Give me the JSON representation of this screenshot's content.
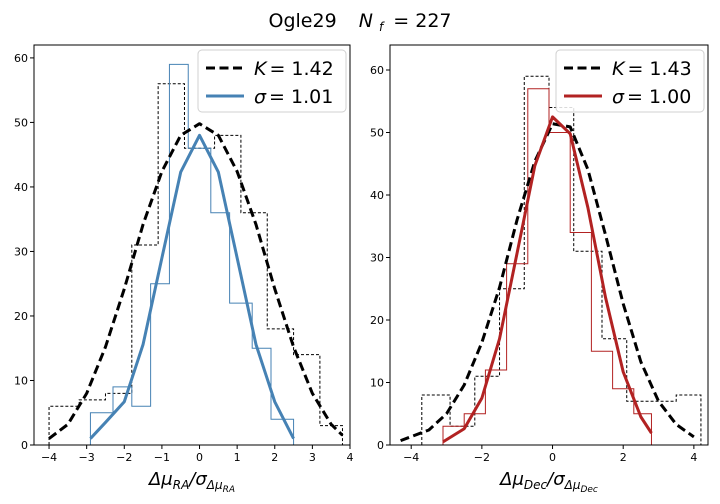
{
  "figure": {
    "title": "Ogle29",
    "title_nf": "N",
    "title_nf_sub": "f",
    "title_nf_value": "= 227"
  },
  "chart_data": [
    {
      "type": "histogram",
      "xlabel": "Δμ_RA/σ_Δμ_RA",
      "xlabel_parts": {
        "main": "Δμ",
        "main_sub": "RA",
        "sep": "/σ",
        "sep_sub": "Δμ",
        "sep_subsub": "RA"
      },
      "xlim": [
        -4.4,
        4.0
      ],
      "ylim": [
        0,
        62
      ],
      "xticks": [
        -4,
        -3,
        -2,
        -1,
        0,
        1,
        2,
        3,
        4
      ],
      "xtick_labels": [
        "−4",
        "−3",
        "−2",
        "−1",
        "0",
        "1",
        "2",
        "3",
        "4"
      ],
      "yticks": [
        0,
        10,
        20,
        30,
        40,
        50,
        60
      ],
      "ytick_labels": [
        "0",
        "10",
        "20",
        "30",
        "40",
        "50",
        "60"
      ],
      "legend_position": "top-right",
      "series": [
        {
          "name": "K = 1.42",
          "legend_label": {
            "sym": "K",
            "value": "= 1.42"
          },
          "style": "dashed",
          "color": "#000000",
          "bin_edges": [
            -4.0,
            -3.2,
            -2.5,
            -1.8,
            -1.1,
            -0.4,
            0.4,
            1.1,
            1.8,
            2.5,
            3.2,
            3.8
          ],
          "counts": [
            6,
            7,
            8,
            31,
            56,
            46,
            48,
            36,
            18,
            14,
            3
          ],
          "curve_x": [
            -4.0,
            -3.5,
            -3.0,
            -2.5,
            -2.0,
            -1.5,
            -1.0,
            -0.5,
            0.0,
            0.5,
            1.0,
            1.5,
            2.0,
            2.5,
            3.0,
            3.5,
            3.8
          ],
          "curve_y": [
            1.0,
            3.2,
            8.0,
            15.2,
            24.2,
            34.2,
            42.4,
            48.0,
            49.8,
            48.0,
            42.4,
            34.2,
            24.2,
            15.2,
            8.0,
            3.2,
            1.5
          ]
        },
        {
          "name": "σ = 1.01",
          "legend_label": {
            "sym": "σ",
            "value": "= 1.01"
          },
          "style": "solid",
          "color": "#4682b4",
          "bin_edges": [
            -2.9,
            -2.3,
            -1.8,
            -1.3,
            -0.8,
            -0.3,
            0.3,
            0.8,
            1.4,
            1.9,
            2.5
          ],
          "counts": [
            5,
            9,
            6,
            25,
            59,
            46,
            36,
            22,
            15,
            4
          ],
          "curve_x": [
            -2.9,
            -2.5,
            -2.0,
            -1.5,
            -1.0,
            -0.5,
            0.0,
            0.5,
            1.0,
            1.5,
            2.0,
            2.5
          ],
          "curve_y": [
            1.0,
            3.5,
            6.7,
            15.6,
            29.0,
            42.3,
            48.0,
            42.3,
            29.0,
            15.6,
            6.7,
            1.0
          ]
        }
      ]
    },
    {
      "type": "histogram",
      "xlabel": "Δμ_Dec/σ_Δμ_Dec",
      "xlabel_parts": {
        "main": "Δμ",
        "main_sub": "Dec",
        "sep": "/σ",
        "sep_sub": "Δμ",
        "sep_subsub": "Dec"
      },
      "xlim": [
        -4.6,
        4.4
      ],
      "ylim": [
        0,
        64
      ],
      "xticks": [
        -4,
        -2,
        0,
        2,
        4
      ],
      "xtick_labels": [
        "−4",
        "−2",
        "0",
        "2",
        "4"
      ],
      "yticks": [
        0,
        10,
        20,
        30,
        40,
        50,
        60
      ],
      "ytick_labels": [
        "0",
        "10",
        "20",
        "30",
        "40",
        "50",
        "60"
      ],
      "legend_position": "top-right",
      "series": [
        {
          "name": "K = 1.43",
          "legend_label": {
            "sym": "K",
            "value": "= 1.43"
          },
          "style": "dashed",
          "color": "#000000",
          "bin_edges": [
            -3.7,
            -2.9,
            -2.2,
            -1.5,
            -0.8,
            -0.1,
            0.6,
            1.4,
            2.1,
            2.8,
            3.5,
            4.2
          ],
          "counts": [
            8,
            3,
            11,
            25,
            59,
            54,
            31,
            17,
            7,
            7,
            8
          ],
          "curve_x": [
            -4.3,
            -3.5,
            -3.0,
            -2.5,
            -2.0,
            -1.5,
            -1.0,
            -0.5,
            0.0,
            0.5,
            1.0,
            1.5,
            2.0,
            2.5,
            3.0,
            3.5,
            4.0
          ],
          "curve_y": [
            0.7,
            2.4,
            5.0,
            9.6,
            16.4,
            25.2,
            36.1,
            45.4,
            51.4,
            50.9,
            44.1,
            33.6,
            22.6,
            13.3,
            7.0,
            3.3,
            1.3
          ]
        },
        {
          "name": "σ = 1.00",
          "legend_label": {
            "sym": "σ",
            "value": "= 1.00"
          },
          "style": "solid",
          "color": "#b22222",
          "bin_edges": [
            -3.1,
            -2.5,
            -1.9,
            -1.3,
            -0.7,
            -0.1,
            0.5,
            1.1,
            1.7,
            2.3,
            2.8
          ],
          "counts": [
            3,
            5,
            12,
            29,
            57,
            50,
            34,
            15,
            9,
            5
          ],
          "curve_x": [
            -3.1,
            -2.5,
            -2.0,
            -1.5,
            -1.0,
            -0.5,
            0.0,
            0.5,
            1.0,
            1.5,
            2.0,
            2.5,
            2.8
          ],
          "curve_y": [
            0.5,
            2.6,
            7.5,
            17.0,
            30.8,
            44.7,
            52.5,
            49.8,
            38.0,
            23.6,
            11.7,
            4.5,
            1.9
          ]
        }
      ]
    }
  ]
}
